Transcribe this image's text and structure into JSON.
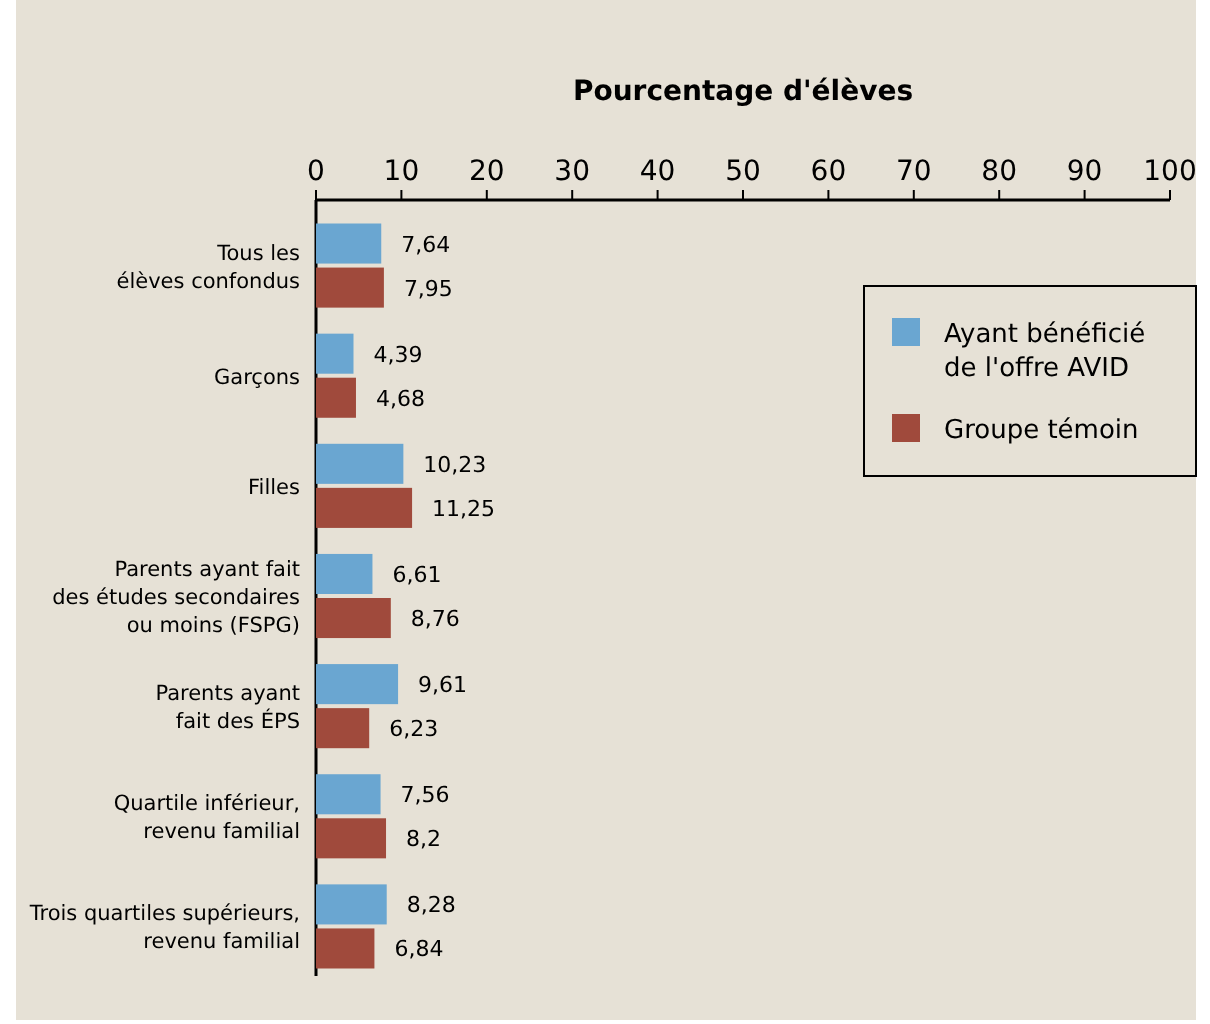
{
  "chart_data": {
    "type": "bar",
    "orientation": "horizontal",
    "xlabel": "Pourcentage d'élèves",
    "categories": [
      "Tous les\nélèves confondus",
      "Garçons",
      "Filles",
      "Parents ayant fait\ndes études secondaires\nou moins (FSPG)",
      "Parents ayant\nfait des ÉPS",
      "Quartile inférieur,\nrevenu familial",
      "Trois quartiles supérieurs,\nrevenu familial"
    ],
    "series": [
      {
        "name": "Ayant bénéficié\nde l'offre AVID",
        "color": "#6aa6d1",
        "values": [
          7.64,
          4.39,
          10.23,
          6.61,
          9.61,
          7.56,
          8.28
        ],
        "value_labels": [
          "7,64",
          "4,39",
          "10,23",
          "6,61",
          "9,61",
          "7,56",
          "8,28"
        ]
      },
      {
        "name": "Groupe témoin",
        "color": "#a04a3c",
        "values": [
          7.95,
          4.68,
          11.25,
          8.76,
          6.23,
          8.2,
          6.84
        ],
        "value_labels": [
          "7,95",
          "4,68",
          "11,25",
          "8,76",
          "6,23",
          "8,2",
          "6,84"
        ]
      }
    ],
    "xlim": [
      0,
      100
    ],
    "xticks": [
      0,
      10,
      20,
      30,
      40,
      50,
      60,
      70,
      80,
      90,
      100
    ],
    "legend": "top right",
    "grid": false
  }
}
